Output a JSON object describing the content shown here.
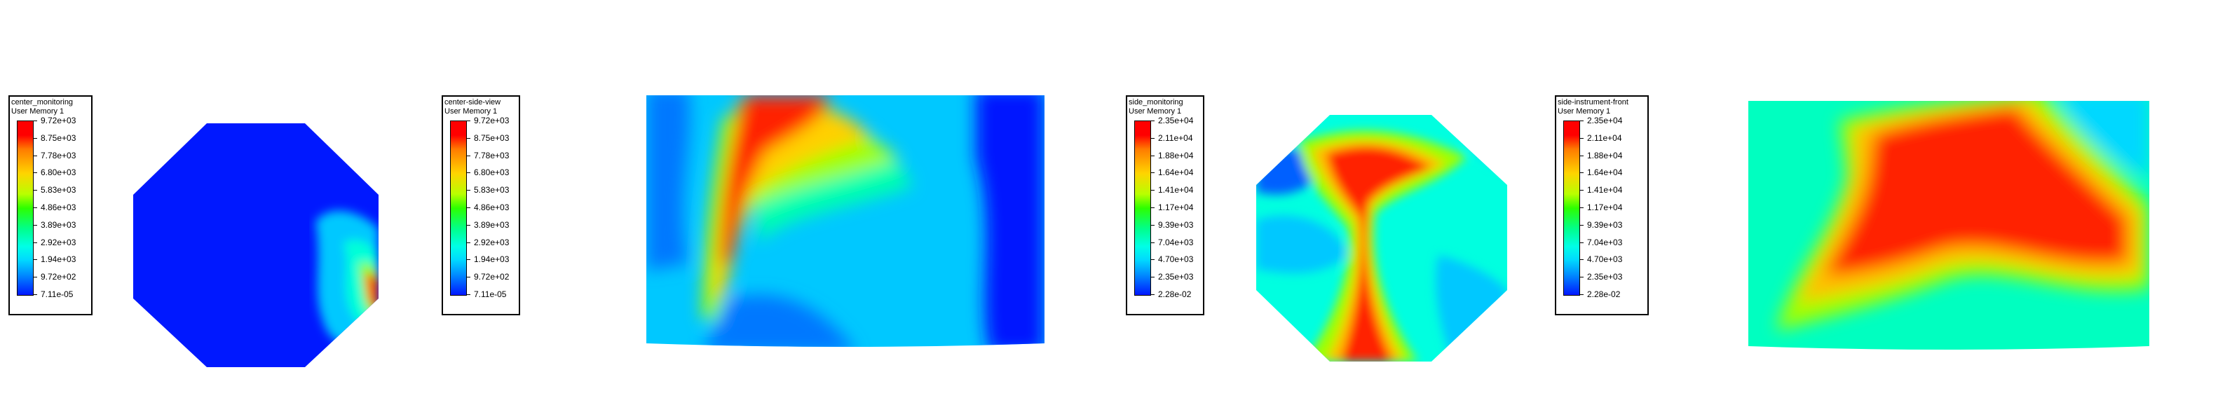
{
  "legends": [
    {
      "title": "center_monitoring",
      "subtitle": "User Memory 1",
      "values": [
        "9.72e+03",
        "8.75e+03",
        "7.78e+03",
        "6.80e+03",
        "5.83e+03",
        "4.86e+03",
        "3.89e+03",
        "2.92e+03",
        "1.94e+03",
        "9.72e+02",
        "7.11e-05"
      ]
    },
    {
      "title": "center-side-view",
      "subtitle": "User Memory 1",
      "values": [
        "9.72e+03",
        "8.75e+03",
        "7.78e+03",
        "6.80e+03",
        "5.83e+03",
        "4.86e+03",
        "3.89e+03",
        "2.92e+03",
        "1.94e+03",
        "9.72e+02",
        "7.11e-05"
      ]
    },
    {
      "title": "side_monitoring",
      "subtitle": "User Memory 1",
      "values": [
        "2.35e+04",
        "2.11e+04",
        "1.88e+04",
        "1.64e+04",
        "1.41e+04",
        "1.17e+04",
        "9.39e+03",
        "7.04e+03",
        "4.70e+03",
        "2.35e+03",
        "2.28e-02"
      ]
    },
    {
      "title": "side-instrument-front",
      "subtitle": "User Memory 1",
      "values": [
        "2.35e+04",
        "2.11e+04",
        "1.88e+04",
        "1.64e+04",
        "1.41e+04",
        "1.17e+04",
        "9.39e+03",
        "7.04e+03",
        "4.70e+03",
        "2.35e+03",
        "2.28e-02"
      ]
    }
  ]
}
